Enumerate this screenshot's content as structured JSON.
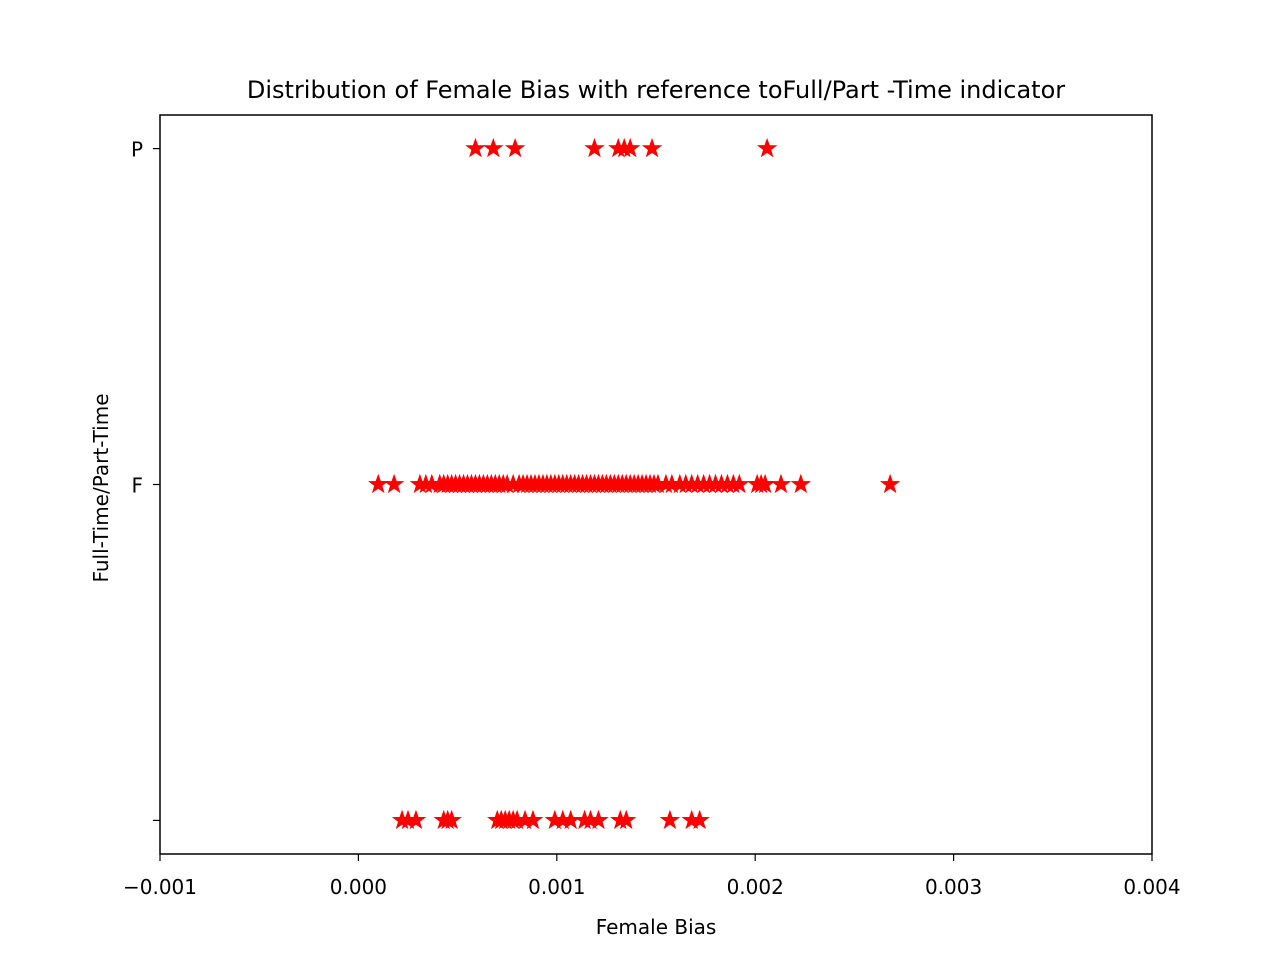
{
  "chart_data": {
    "type": "scatter",
    "title": "Distribution of Female Bias with reference toFull/Part -Time indicator",
    "xlabel": "Female Bias",
    "ylabel": "Full-Time/Part-Time",
    "xlim": [
      -0.001,
      0.004
    ],
    "x_ticks": [
      -0.001,
      0.0,
      0.001,
      0.002,
      0.003,
      0.004
    ],
    "x_tick_labels": [
      "−0.001",
      "0.000",
      "0.001",
      "0.002",
      "0.003",
      "0.004"
    ],
    "categories": [
      "",
      "F",
      "P"
    ],
    "y_tick_labels": [
      "",
      "F",
      "P"
    ],
    "marker": "star",
    "color": "#ff0000",
    "grid": false,
    "series": [
      {
        "category": "P",
        "x": [
          0.00059,
          0.00068,
          0.00079,
          0.00119,
          0.00131,
          0.00134,
          0.00137,
          0.00148,
          0.00206
        ]
      },
      {
        "category": "F",
        "x": [
          0.0001,
          0.00018,
          0.00031,
          0.00034,
          0.00037,
          0.00041,
          0.00043,
          0.00045,
          0.00047,
          0.00049,
          0.00051,
          0.00053,
          0.00055,
          0.00057,
          0.00059,
          0.00061,
          0.00063,
          0.00065,
          0.00067,
          0.00069,
          0.00071,
          0.00073,
          0.00075,
          0.00078,
          0.00081,
          0.00083,
          0.00085,
          0.00087,
          0.00089,
          0.00091,
          0.00093,
          0.00095,
          0.00097,
          0.00099,
          0.00101,
          0.00103,
          0.00105,
          0.00107,
          0.00109,
          0.00111,
          0.00113,
          0.00115,
          0.00117,
          0.00119,
          0.00121,
          0.00123,
          0.00125,
          0.00127,
          0.00129,
          0.00131,
          0.00133,
          0.00135,
          0.00137,
          0.00139,
          0.00141,
          0.00143,
          0.00145,
          0.00147,
          0.00149,
          0.00151,
          0.00155,
          0.00158,
          0.00162,
          0.00165,
          0.00168,
          0.00171,
          0.00174,
          0.00177,
          0.0018,
          0.00183,
          0.00186,
          0.00189,
          0.00192,
          0.00201,
          0.00203,
          0.00205,
          0.00213,
          0.00223,
          0.00268
        ]
      },
      {
        "category": "",
        "x": [
          0.00022,
          0.00025,
          0.00029,
          0.00043,
          0.00045,
          0.00047,
          0.0007,
          0.00072,
          0.00074,
          0.00076,
          0.00078,
          0.0008,
          0.00084,
          0.00088,
          0.00099,
          0.00103,
          0.00107,
          0.00114,
          0.00117,
          0.00121,
          0.00132,
          0.00135,
          0.00157,
          0.00168,
          0.00172
        ]
      }
    ]
  }
}
